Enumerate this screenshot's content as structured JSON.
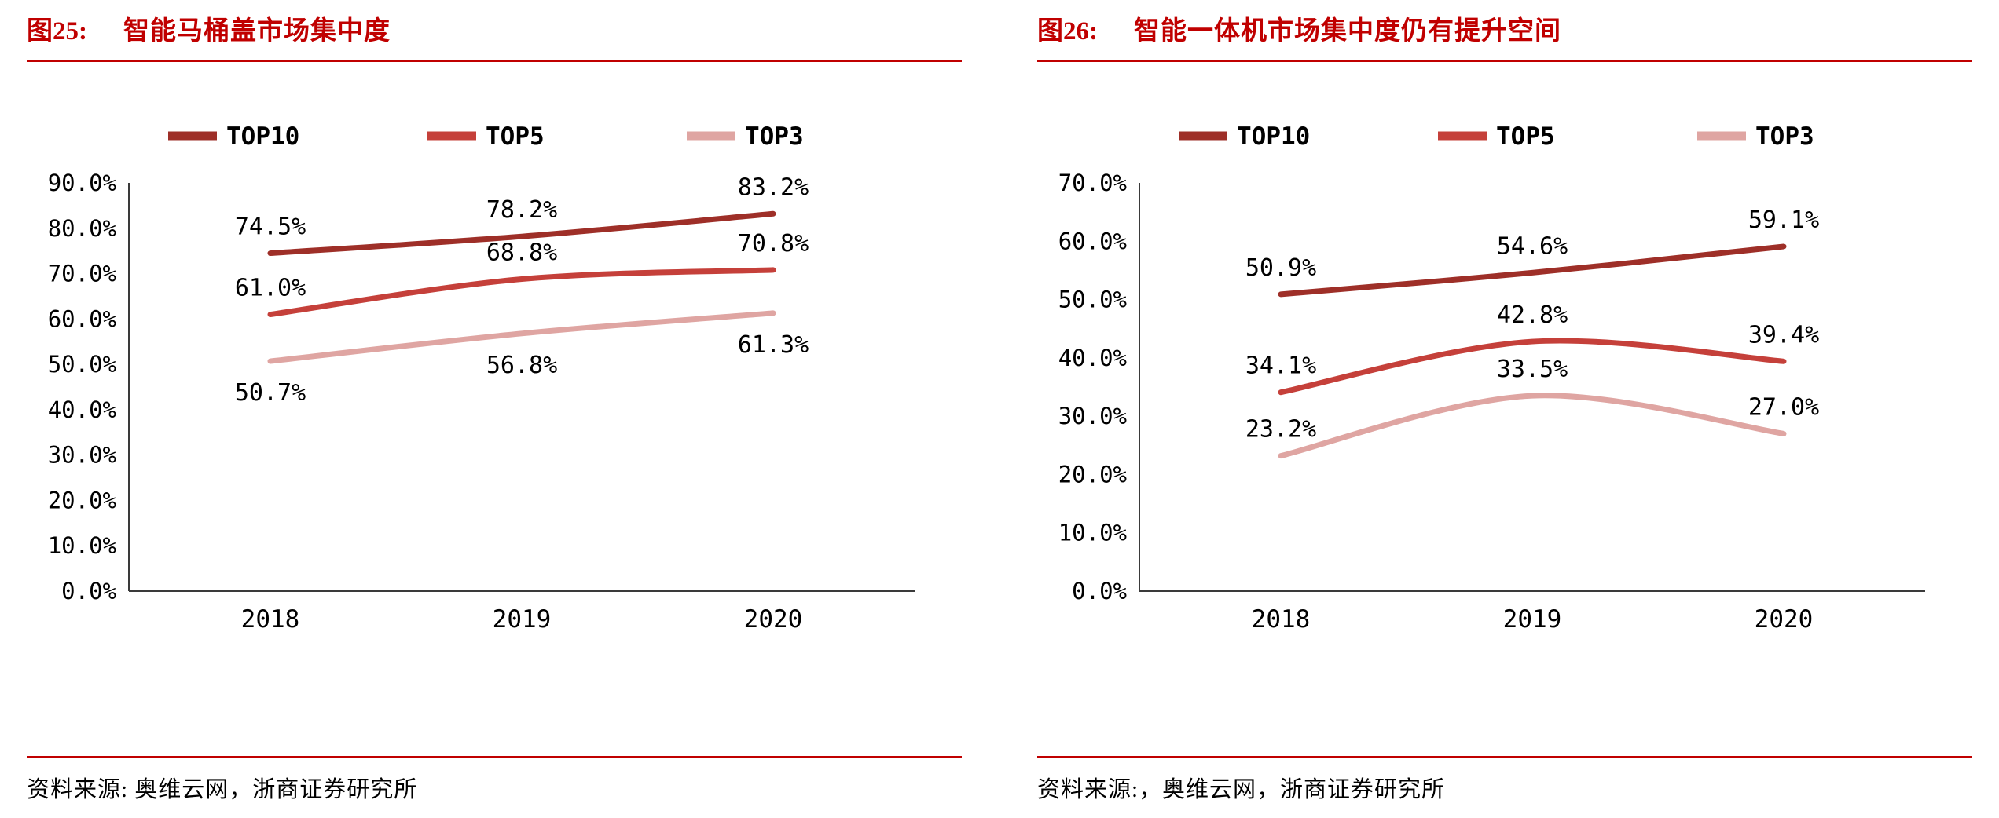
{
  "colors": {
    "title_red": "#c00000",
    "rule_red": "#c00000",
    "axis_color": "#3a3a3a",
    "top10": "#9e2f28",
    "top5": "#c5403a",
    "top3": "#dfa5a2"
  },
  "chart_data": [
    {
      "type": "line",
      "fig_label": "图25:",
      "title": "智能马桶盖市场集中度",
      "categories": [
        "2018",
        "2019",
        "2020"
      ],
      "series": [
        {
          "name": "TOP10",
          "values": [
            74.5,
            78.2,
            83.2
          ],
          "color": "#9e2f28",
          "label_position": "above"
        },
        {
          "name": "TOP5",
          "values": [
            61.0,
            68.8,
            70.8
          ],
          "color": "#c5403a",
          "label_position": "above"
        },
        {
          "name": "TOP3",
          "values": [
            50.7,
            56.8,
            61.3
          ],
          "color": "#dfa5a2",
          "label_position": "below"
        }
      ],
      "ylim": [
        0,
        90
      ],
      "ytick_labels": [
        "0.0%",
        "10.0%",
        "20.0%",
        "30.0%",
        "40.0%",
        "50.0%",
        "60.0%",
        "70.0%",
        "80.0%",
        "90.0%"
      ],
      "legend_position": "top",
      "grid": false,
      "source": "资料来源: 奥维云网，浙商证券研究所"
    },
    {
      "type": "line",
      "fig_label": "图26:",
      "title": "智能一体机市场集中度仍有提升空间",
      "categories": [
        "2018",
        "2019",
        "2020"
      ],
      "series": [
        {
          "name": "TOP10",
          "values": [
            50.9,
            54.6,
            59.1
          ],
          "color": "#9e2f28",
          "label_position": "above"
        },
        {
          "name": "TOP5",
          "values": [
            34.1,
            42.8,
            39.4
          ],
          "color": "#c5403a",
          "label_position": "above"
        },
        {
          "name": "TOP3",
          "values": [
            23.2,
            33.5,
            27.0
          ],
          "color": "#dfa5a2",
          "label_position": "above"
        }
      ],
      "ylim": [
        0,
        70
      ],
      "ytick_labels": [
        "0.0%",
        "10.0%",
        "20.0%",
        "30.0%",
        "40.0%",
        "50.0%",
        "60.0%",
        "70.0%"
      ],
      "legend_position": "top",
      "grid": false,
      "source": "资料来源:，奥维云网，浙商证券研究所"
    }
  ]
}
